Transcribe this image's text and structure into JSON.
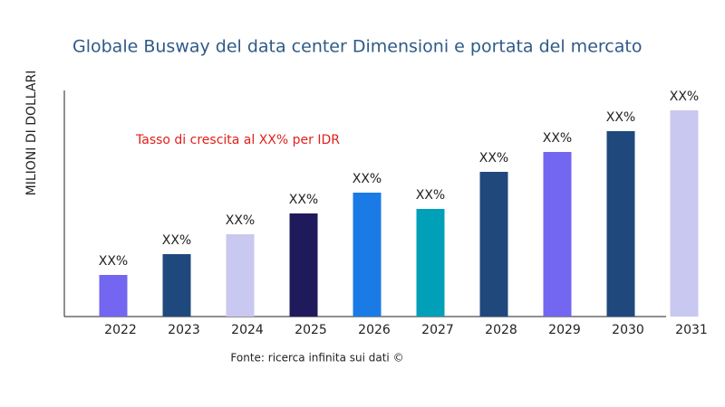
{
  "chart_data": {
    "type": "bar",
    "title": "Globale Busway del data center Dimensioni e portata del mercato",
    "y_label": "MILIONI DI DOLLARI",
    "annotation": "Tasso di crescita al XX% per IDR",
    "source": "Fonte: ricerca infinita sui dati ©",
    "categories": [
      "2022",
      "2023",
      "2024",
      "2025",
      "2026",
      "2027",
      "2028",
      "2029",
      "2030",
      "2031"
    ],
    "values": [
      46,
      69,
      91,
      114,
      137,
      119,
      160,
      182,
      205,
      228
    ],
    "value_labels": [
      "XX%",
      "XX%",
      "XX%",
      "XX%",
      "XX%",
      "XX%",
      "XX%",
      "XX%",
      "XX%",
      "XX%"
    ],
    "colors": [
      "#7366f0",
      "#1f497d",
      "#c8c8f0",
      "#1f1a5c",
      "#1a7be6",
      "#00a0b8",
      "#1f497d",
      "#7366f0",
      "#1f497d",
      "#c8c8f0"
    ],
    "ylim": [
      0,
      250
    ]
  }
}
